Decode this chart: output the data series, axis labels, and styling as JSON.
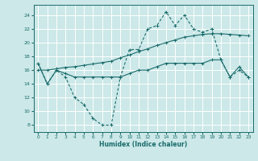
{
  "xlabel": "Humidex (Indice chaleur)",
  "bg_color": "#cce8e8",
  "grid_color": "#ffffff",
  "line_color": "#1a6b6b",
  "xlim": [
    -0.5,
    23.5
  ],
  "ylim": [
    7,
    25.5
  ],
  "yticks": [
    8,
    10,
    12,
    14,
    16,
    18,
    20,
    22,
    24
  ],
  "xticks": [
    0,
    1,
    2,
    3,
    4,
    5,
    6,
    7,
    8,
    9,
    10,
    11,
    12,
    13,
    14,
    15,
    16,
    17,
    18,
    19,
    20,
    21,
    22,
    23
  ],
  "line1_x": [
    0,
    1,
    2,
    3,
    4,
    5,
    6,
    7,
    8,
    9,
    10,
    11,
    12,
    13,
    14,
    15,
    16,
    17,
    18,
    19,
    20,
    21,
    22,
    23
  ],
  "line1_y": [
    17,
    14,
    16,
    15,
    12,
    11,
    9,
    8,
    8,
    15,
    19,
    19,
    22,
    22.5,
    24.5,
    22.5,
    24,
    22,
    21.5,
    22,
    17.5,
    15,
    16,
    15
  ],
  "line2_x": [
    0,
    1,
    2,
    3,
    4,
    5,
    6,
    7,
    8,
    9,
    10,
    11,
    12,
    13,
    14,
    15,
    16,
    17,
    18,
    19,
    20,
    21,
    22,
    23
  ],
  "line2_y": [
    17,
    14,
    16,
    15.5,
    15,
    15,
    15,
    15,
    15,
    15,
    15.5,
    16,
    16,
    16.5,
    17,
    17,
    17,
    17,
    17,
    17.5,
    17.5,
    15,
    16.5,
    15
  ],
  "line3_x": [
    0,
    1,
    2,
    3,
    4,
    5,
    6,
    7,
    8,
    9,
    10,
    11,
    12,
    13,
    14,
    15,
    16,
    17,
    18,
    19,
    20,
    21,
    22,
    23
  ],
  "line3_y": [
    16,
    16,
    16.2,
    16.4,
    16.5,
    16.7,
    16.9,
    17.1,
    17.3,
    17.8,
    18.2,
    18.7,
    19.1,
    19.6,
    20.0,
    20.4,
    20.8,
    21.0,
    21.2,
    21.3,
    21.3,
    21.2,
    21.1,
    21.0
  ]
}
